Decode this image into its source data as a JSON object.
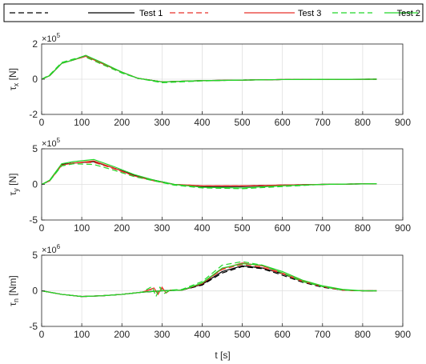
{
  "chart_data": {
    "type": "line",
    "xlabel": "t [s]",
    "legend": {
      "placement": "top",
      "entries": [
        {
          "label": "",
          "color": "#000000",
          "dash": "dashed"
        },
        {
          "label": "Test 1",
          "color": "#000000",
          "dash": "solid"
        },
        {
          "label": "",
          "color": "#e8312a",
          "dash": "dashed"
        },
        {
          "label": "Test 3",
          "color": "#e8312a",
          "dash": "solid"
        },
        {
          "label": "",
          "color": "#22d629",
          "dash": "dashed"
        },
        {
          "label": "Test 2",
          "color": "#22d629",
          "dash": "solid"
        }
      ]
    },
    "x_ticks": [
      0,
      100,
      200,
      300,
      400,
      500,
      600,
      700,
      800,
      900
    ],
    "xlim": [
      0,
      900
    ],
    "grid": true,
    "panels": [
      {
        "ylabel_base": "τ",
        "ylabel_sub": "x",
        "ylabel_unit": " [N]",
        "exponent_base": "×10",
        "exponent_power": "5",
        "ylim": [
          -2,
          2
        ],
        "y_ticks": [
          "2",
          "0",
          "-2"
        ],
        "y_tick_values": [
          2,
          0,
          -2
        ],
        "series": [
          {
            "color": "#000000",
            "dash": "dashed",
            "x": [
              0,
              20,
              50,
              80,
              110,
              150,
              200,
              240,
              300,
              400,
              500,
              600,
              700,
              835
            ],
            "y": [
              0,
              0.2,
              0.9,
              1.1,
              1.35,
              0.9,
              0.4,
              0.05,
              -0.15,
              -0.08,
              -0.05,
              -0.02,
              -0.01,
              0
            ]
          },
          {
            "color": "#000000",
            "dash": "solid",
            "x": [
              0,
              20,
              50,
              80,
              110,
              150,
              200,
              240,
              300,
              400,
              500,
              600,
              700,
              835
            ],
            "y": [
              0,
              0.2,
              0.9,
              1.1,
              1.35,
              0.9,
              0.4,
              0.05,
              -0.15,
              -0.08,
              -0.05,
              -0.02,
              -0.01,
              0
            ]
          },
          {
            "color": "#e8312a",
            "dash": "dashed",
            "x": [
              0,
              20,
              50,
              80,
              110,
              150,
              200,
              240,
              300,
              400,
              500,
              600,
              700,
              835
            ],
            "y": [
              0,
              0.2,
              0.9,
              1.1,
              1.3,
              0.9,
              0.4,
              0.05,
              -0.15,
              -0.08,
              -0.05,
              -0.02,
              -0.01,
              0
            ]
          },
          {
            "color": "#e8312a",
            "dash": "solid",
            "x": [
              0,
              20,
              50,
              80,
              110,
              150,
              200,
              240,
              300,
              400,
              500,
              600,
              700,
              835
            ],
            "y": [
              0,
              0.2,
              0.9,
              1.1,
              1.3,
              0.9,
              0.4,
              0.05,
              -0.15,
              -0.08,
              -0.05,
              -0.02,
              -0.01,
              0
            ]
          },
          {
            "color": "#22d629",
            "dash": "dashed",
            "x": [
              0,
              20,
              50,
              80,
              105,
              150,
              200,
              240,
              300,
              400,
              500,
              600,
              700,
              835
            ],
            "y": [
              0,
              0.25,
              0.95,
              1.15,
              1.3,
              0.85,
              0.35,
              0.05,
              -0.2,
              -0.1,
              -0.05,
              -0.02,
              -0.01,
              0
            ]
          },
          {
            "color": "#22d629",
            "dash": "solid",
            "x": [
              0,
              20,
              50,
              80,
              110,
              150,
              200,
              240,
              300,
              400,
              500,
              600,
              700,
              835
            ],
            "y": [
              0,
              0.2,
              0.9,
              1.1,
              1.35,
              0.95,
              0.4,
              0.05,
              -0.15,
              -0.08,
              -0.05,
              -0.02,
              -0.01,
              0
            ]
          }
        ]
      },
      {
        "ylabel_base": "τ",
        "ylabel_sub": "y",
        "ylabel_unit": " [N]",
        "exponent_base": "×10",
        "exponent_power": "5",
        "ylim": [
          -5,
          5
        ],
        "y_ticks": [
          "5",
          "0",
          "-5"
        ],
        "y_tick_values": [
          5,
          0,
          -5
        ],
        "series": [
          {
            "color": "#000000",
            "dash": "dashed",
            "x": [
              0,
              20,
              50,
              80,
              130,
              180,
              230,
              280,
              330,
              400,
              500,
              600,
              700,
              835
            ],
            "y": [
              0,
              0.5,
              2.8,
              3.0,
              3.2,
              2.3,
              1.3,
              0.6,
              0,
              -0.3,
              -0.2,
              -0.1,
              0,
              0.1
            ]
          },
          {
            "color": "#000000",
            "dash": "solid",
            "x": [
              0,
              20,
              50,
              80,
              130,
              180,
              230,
              280,
              330,
              400,
              500,
              600,
              700,
              835
            ],
            "y": [
              0,
              0.5,
              2.8,
              3.0,
              3.2,
              2.3,
              1.3,
              0.6,
              0,
              -0.3,
              -0.3,
              -0.1,
              0,
              0.1
            ]
          },
          {
            "color": "#e8312a",
            "dash": "dashed",
            "x": [
              0,
              20,
              50,
              80,
              130,
              180,
              230,
              280,
              330,
              400,
              500,
              600,
              700,
              835
            ],
            "y": [
              0,
              0.5,
              2.7,
              3.0,
              3.1,
              2.2,
              1.2,
              0.5,
              0,
              -0.2,
              -0.2,
              -0.1,
              0,
              0.1
            ]
          },
          {
            "color": "#e8312a",
            "dash": "solid",
            "x": [
              0,
              20,
              50,
              80,
              130,
              180,
              230,
              280,
              330,
              400,
              500,
              600,
              700,
              835
            ],
            "y": [
              0,
              0.5,
              2.7,
              3.0,
              3.3,
              2.3,
              1.2,
              0.5,
              0,
              -0.2,
              -0.2,
              -0.1,
              0,
              0.1
            ]
          },
          {
            "color": "#22d629",
            "dash": "dashed",
            "x": [
              0,
              20,
              50,
              80,
              130,
              180,
              230,
              280,
              330,
              400,
              500,
              600,
              700,
              835
            ],
            "y": [
              0,
              0.5,
              2.6,
              2.9,
              2.8,
              2.0,
              1.1,
              0.5,
              -0.1,
              -0.5,
              -0.6,
              -0.3,
              0,
              0.1
            ]
          },
          {
            "color": "#22d629",
            "dash": "solid",
            "x": [
              0,
              20,
              50,
              80,
              130,
              180,
              230,
              280,
              330,
              400,
              500,
              600,
              700,
              835
            ],
            "y": [
              0,
              0.6,
              2.9,
              3.2,
              3.5,
              2.5,
              1.4,
              0.6,
              0,
              -0.4,
              -0.5,
              -0.2,
              0,
              0.1
            ]
          }
        ]
      },
      {
        "ylabel_base": "τ",
        "ylabel_sub": "n",
        "ylabel_unit": " [Nm]",
        "exponent_base": "×10",
        "exponent_power": "6",
        "ylim": [
          -5,
          5
        ],
        "y_ticks": [
          "5",
          "0",
          "-5"
        ],
        "y_tick_values": [
          5,
          0,
          -5
        ],
        "series": [
          {
            "color": "#000000",
            "dash": "dashed",
            "x": [
              0,
              50,
              100,
              150,
              200,
              250,
              300,
              350,
              400,
              450,
              500,
              550,
              600,
              650,
              700,
              750,
              800,
              835
            ],
            "y": [
              0,
              -0.5,
              -0.8,
              -0.7,
              -0.5,
              -0.2,
              0,
              0.1,
              0.8,
              2.5,
              3.4,
              3.1,
              2.2,
              1.2,
              0.5,
              0.1,
              0,
              0
            ]
          },
          {
            "color": "#000000",
            "dash": "solid",
            "x": [
              0,
              50,
              100,
              150,
              200,
              250,
              300,
              350,
              400,
              450,
              500,
              550,
              600,
              650,
              700,
              750,
              800,
              835
            ],
            "y": [
              0,
              -0.5,
              -0.8,
              -0.7,
              -0.5,
              -0.2,
              0,
              0.1,
              0.9,
              2.7,
              3.5,
              3.2,
              2.4,
              1.3,
              0.6,
              0.1,
              0,
              0
            ]
          },
          {
            "color": "#e8312a",
            "dash": "dashed",
            "x": [
              0,
              50,
              100,
              150,
              200,
              250,
              280,
              290,
              300,
              310,
              320,
              350,
              400,
              450,
              500,
              550,
              600,
              650,
              700,
              750,
              800,
              835
            ],
            "y": [
              0,
              -0.5,
              -0.8,
              -0.7,
              -0.5,
              -0.2,
              0.3,
              -0.4,
              0.4,
              -0.3,
              0.1,
              0.1,
              1.0,
              3.0,
              3.7,
              3.3,
              2.4,
              1.3,
              0.6,
              0.1,
              0,
              0
            ]
          },
          {
            "color": "#e8312a",
            "dash": "solid",
            "x": [
              0,
              50,
              100,
              150,
              200,
              250,
              280,
              290,
              300,
              310,
              320,
              350,
              400,
              450,
              500,
              550,
              600,
              650,
              700,
              750,
              800,
              835
            ],
            "y": [
              0,
              -0.5,
              -0.8,
              -0.7,
              -0.5,
              -0.2,
              0.4,
              -0.5,
              0.5,
              -0.3,
              0.1,
              0.1,
              1.0,
              3.1,
              3.9,
              3.5,
              2.5,
              1.4,
              0.6,
              0.1,
              0,
              0
            ]
          },
          {
            "color": "#22d629",
            "dash": "dashed",
            "x": [
              0,
              50,
              100,
              150,
              200,
              250,
              275,
              285,
              295,
              305,
              320,
              350,
              400,
              450,
              500,
              550,
              600,
              650,
              700,
              750,
              800,
              835
            ],
            "y": [
              0,
              -0.5,
              -0.8,
              -0.7,
              -0.5,
              -0.2,
              0.6,
              -0.8,
              0.5,
              -0.4,
              0.1,
              0.2,
              1.3,
              3.6,
              4.1,
              3.6,
              2.5,
              1.3,
              0.6,
              0.1,
              0,
              0
            ]
          },
          {
            "color": "#22d629",
            "dash": "solid",
            "x": [
              0,
              50,
              100,
              150,
              200,
              250,
              300,
              350,
              400,
              450,
              500,
              550,
              600,
              650,
              700,
              750,
              800,
              835
            ],
            "y": [
              0,
              -0.5,
              -0.8,
              -0.7,
              -0.5,
              -0.2,
              0,
              0.1,
              1.1,
              3.2,
              3.8,
              3.6,
              2.7,
              1.5,
              0.7,
              0.2,
              0,
              0
            ]
          }
        ]
      }
    ]
  }
}
